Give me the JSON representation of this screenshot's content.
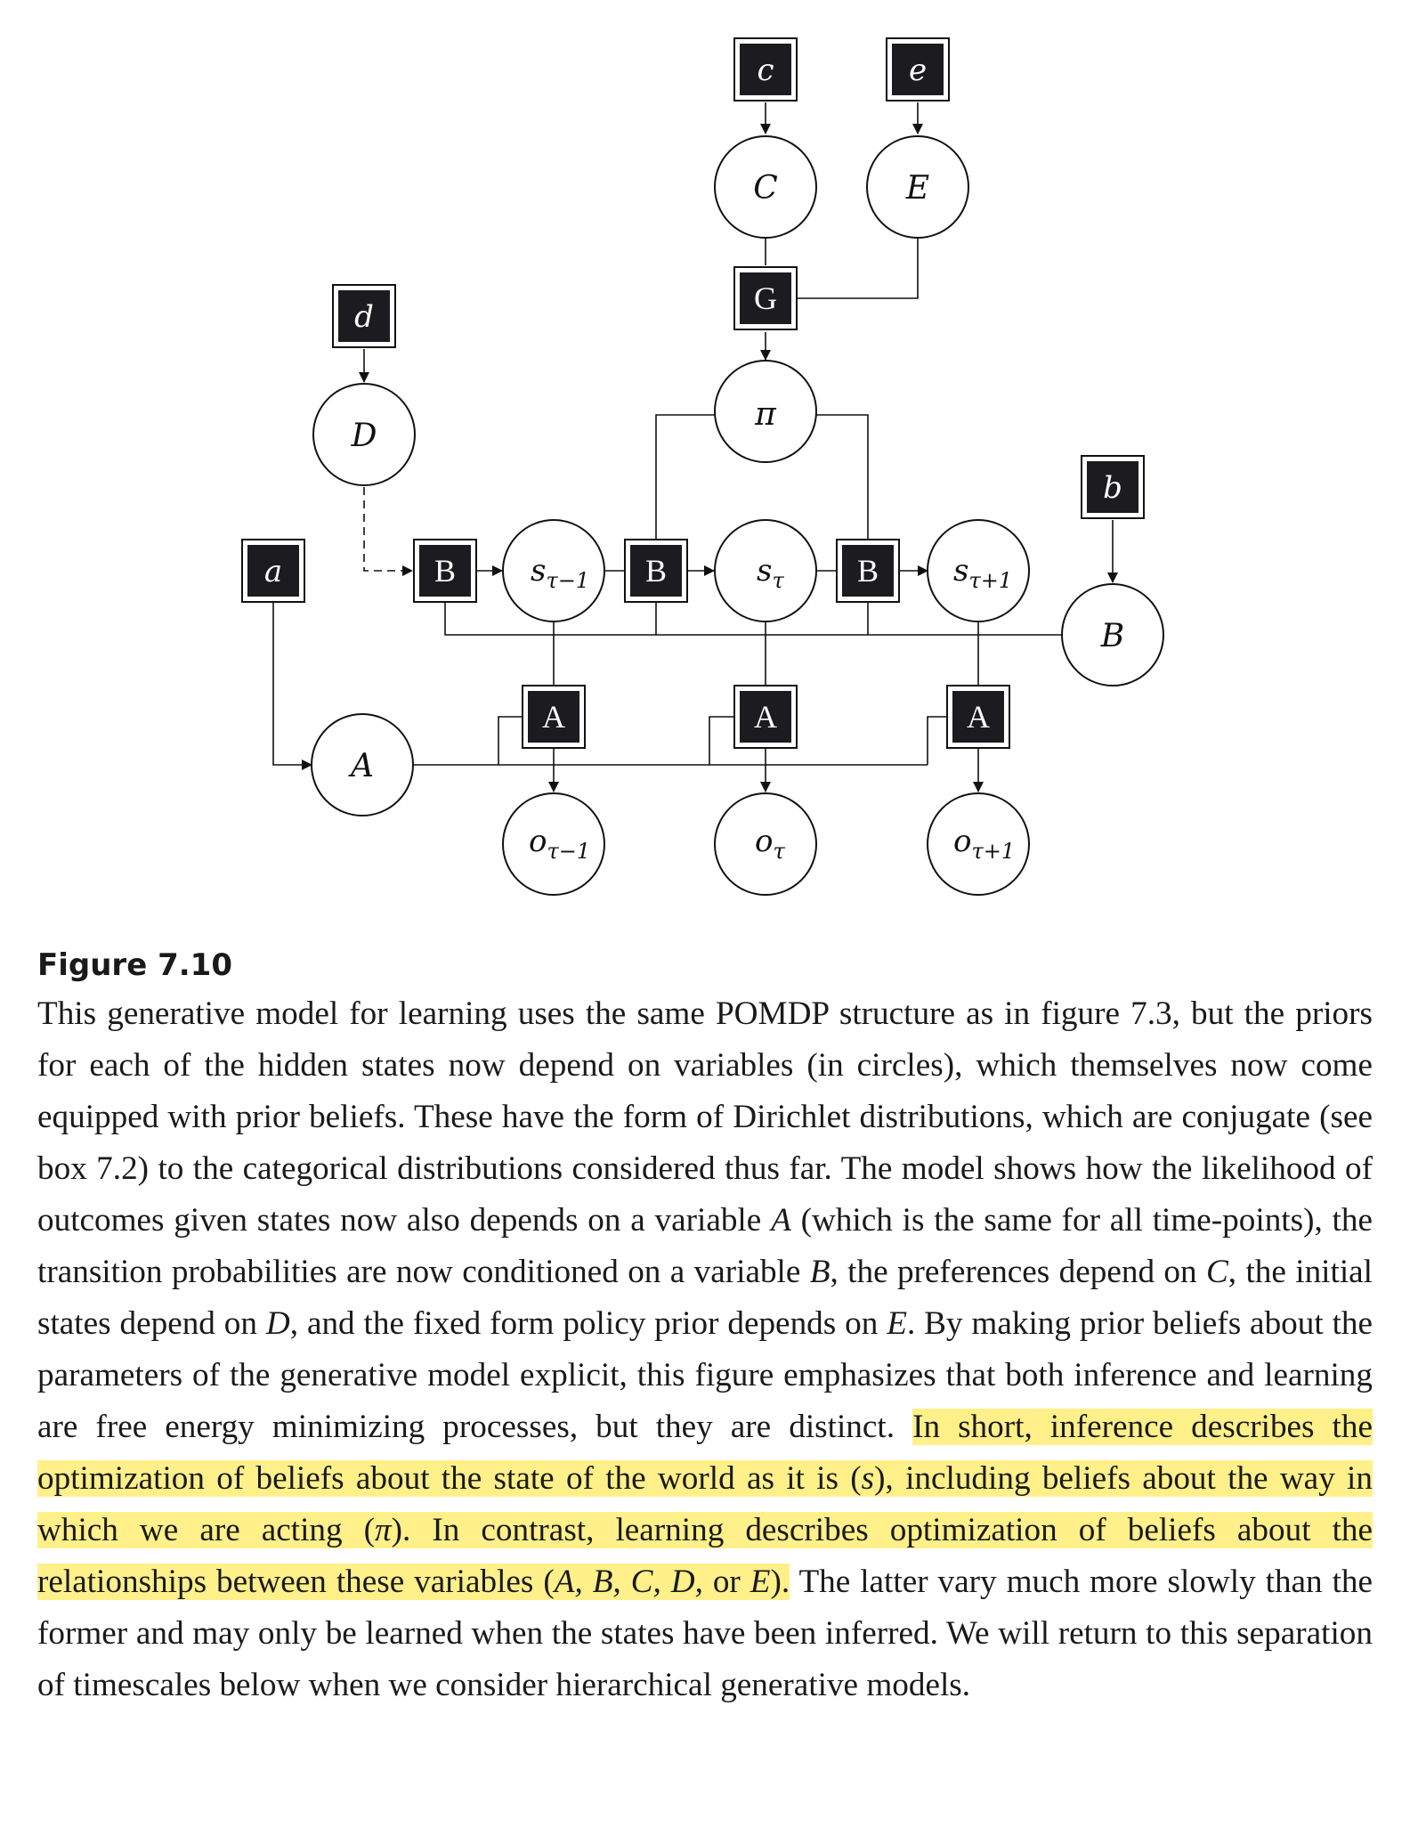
{
  "diagram": {
    "nodes": {
      "c": "c",
      "e": "e",
      "C": "C",
      "E": "E",
      "G": "G",
      "d": "d",
      "D": "D",
      "pi": "π",
      "b": "b",
      "a": "a",
      "B_factor": "B",
      "B_param": "B",
      "A_factor": "A",
      "A_param": "A",
      "s_prev": "s",
      "s_prev_sub": "τ−1",
      "s_cur": "s",
      "s_cur_sub": "τ",
      "s_next": "s",
      "s_next_sub": "τ+1",
      "o_prev": "o",
      "o_prev_sub": "τ−1",
      "o_cur": "o",
      "o_cur_sub": "τ",
      "o_next": "o",
      "o_next_sub": "τ+1"
    }
  },
  "caption": {
    "label": "Figure 7.10",
    "p1": "This generative model for learning uses the same POMDP structure as in figure 7.3, but the priors for each of the hidden states now depend on variables (in circles), which themselves now come equipped with prior beliefs. These have the form of Dirichlet distributions, which are conjugate (see box 7.2) to the categorical distributions considered thus far. The model shows how the likelihood of outcomes given states now also depends on a variable ",
    "v_A": "A",
    "p2": " (which is the same for all time-points), the transition probabilities are now conditioned on a variable ",
    "v_B": "B",
    "p3": ", the preferences depend on ",
    "v_C": "C",
    "p4": ", the initial states depend on ",
    "v_D": "D",
    "p5": ", and the fixed form policy prior depends on ",
    "v_E": "E",
    "p6": ". By making prior beliefs about the parameters of the generative model explicit, this figure emphasizes that both inference and learning are free energy minimizing processes, but they are distinct. ",
    "h1": "In short, inference describes the optimization of beliefs about the state of the world as it is (",
    "h_s": "s",
    "h2": "), including beliefs about the way in which we are acting (",
    "h_pi": "π",
    "h3": "). In contrast, learning describes optimization of beliefs about the relationships between these variables (",
    "h_vars": "A, B, C, D, ",
    "h_or": "or ",
    "h_E": "E",
    "h4": ").",
    "p7": " The latter vary much more slowly than the former and may only be learned when the states have been inferred. We will return to this separation of timescales below when we consider hierarchical generative models."
  }
}
